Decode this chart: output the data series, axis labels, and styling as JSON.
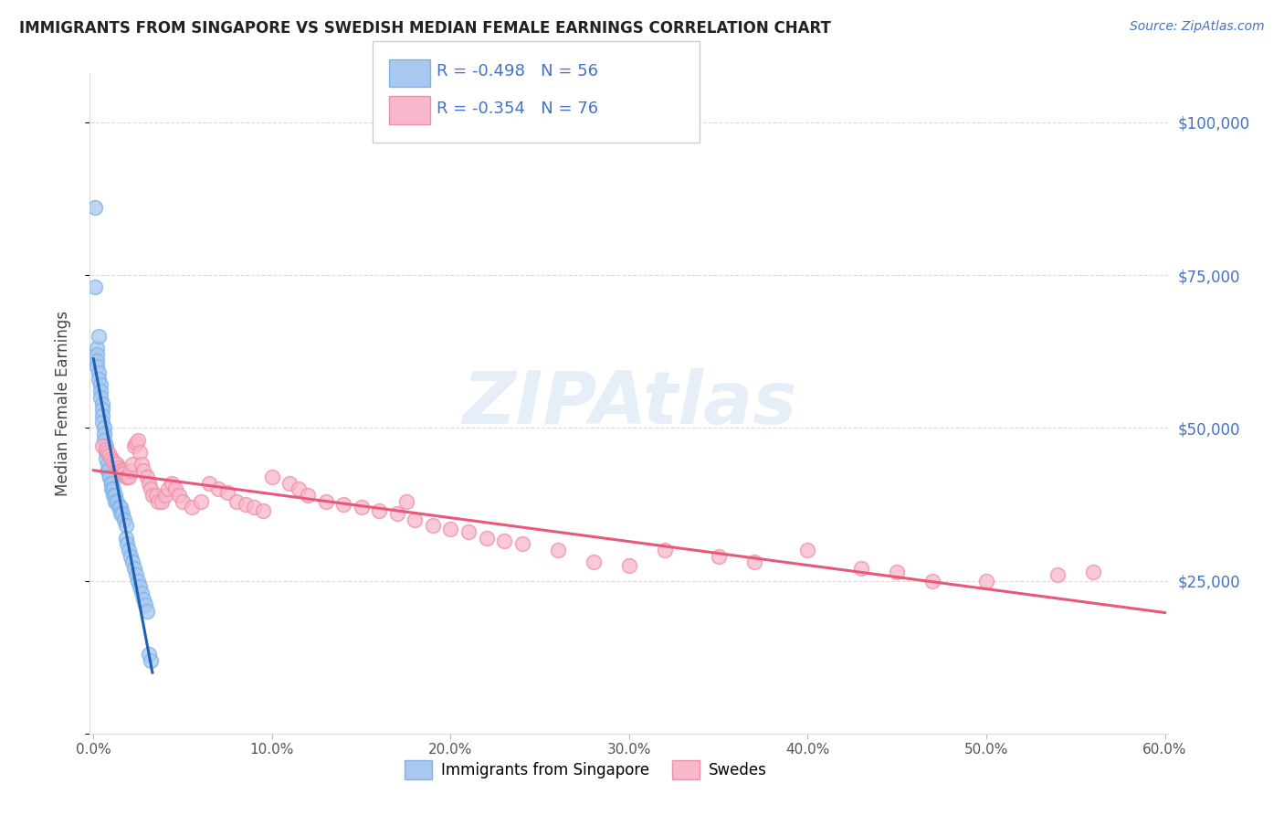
{
  "title": "IMMIGRANTS FROM SINGAPORE VS SWEDISH MEDIAN FEMALE EARNINGS CORRELATION CHART",
  "source": "Source: ZipAtlas.com",
  "ylabel": "Median Female Earnings",
  "xlim": [
    -0.002,
    0.602
  ],
  "ylim": [
    0,
    108000
  ],
  "yticks": [
    0,
    25000,
    50000,
    75000,
    100000
  ],
  "xticks": [
    0.0,
    0.1,
    0.2,
    0.3,
    0.4,
    0.5,
    0.6
  ],
  "xtick_labels": [
    "0.0%",
    "10.0%",
    "20.0%",
    "30.0%",
    "40.0%",
    "50.0%",
    "60.0%"
  ],
  "ytick_labels_right": [
    "$25,000",
    "$50,000",
    "$75,000",
    "$100,000"
  ],
  "background_color": "#ffffff",
  "grid_color": "#cccccc",
  "blue_color": "#A8C8F0",
  "blue_edge_color": "#7EB3E8",
  "blue_line_color": "#2060B0",
  "pink_color": "#F8B8CC",
  "pink_edge_color": "#F090A8",
  "pink_line_color": "#E85878",
  "r_blue": -0.498,
  "n_blue": 56,
  "r_pink": -0.354,
  "n_pink": 76,
  "legend_label_blue": "Immigrants from Singapore",
  "legend_label_pink": "Swedes",
  "blue_points_x": [
    0.001,
    0.001,
    0.002,
    0.002,
    0.002,
    0.002,
    0.003,
    0.003,
    0.003,
    0.004,
    0.004,
    0.004,
    0.005,
    0.005,
    0.005,
    0.005,
    0.006,
    0.006,
    0.006,
    0.007,
    0.007,
    0.007,
    0.008,
    0.008,
    0.008,
    0.009,
    0.009,
    0.01,
    0.01,
    0.01,
    0.011,
    0.011,
    0.012,
    0.012,
    0.013,
    0.014,
    0.015,
    0.015,
    0.016,
    0.017,
    0.018,
    0.018,
    0.019,
    0.02,
    0.021,
    0.022,
    0.023,
    0.024,
    0.025,
    0.026,
    0.027,
    0.028,
    0.029,
    0.03,
    0.031,
    0.032
  ],
  "blue_points_y": [
    86000,
    73000,
    63000,
    62000,
    61000,
    60000,
    59000,
    58000,
    65000,
    57000,
    56000,
    55000,
    54000,
    53000,
    52000,
    51000,
    50000,
    49000,
    48000,
    47000,
    46000,
    45000,
    44000,
    43000,
    43000,
    42000,
    42000,
    41000,
    41000,
    40000,
    40000,
    39000,
    39000,
    38000,
    38000,
    37000,
    37000,
    36000,
    36000,
    35000,
    34000,
    32000,
    31000,
    30000,
    29000,
    28000,
    27000,
    26000,
    25000,
    24000,
    23000,
    22000,
    21000,
    20000,
    13000,
    12000
  ],
  "pink_points_x": [
    0.005,
    0.007,
    0.008,
    0.009,
    0.01,
    0.011,
    0.012,
    0.013,
    0.014,
    0.015,
    0.016,
    0.016,
    0.017,
    0.018,
    0.019,
    0.02,
    0.021,
    0.022,
    0.023,
    0.024,
    0.025,
    0.026,
    0.027,
    0.028,
    0.03,
    0.031,
    0.032,
    0.033,
    0.035,
    0.036,
    0.038,
    0.04,
    0.042,
    0.044,
    0.046,
    0.048,
    0.05,
    0.055,
    0.06,
    0.065,
    0.07,
    0.075,
    0.08,
    0.085,
    0.09,
    0.095,
    0.1,
    0.11,
    0.115,
    0.12,
    0.13,
    0.14,
    0.15,
    0.16,
    0.17,
    0.175,
    0.18,
    0.19,
    0.2,
    0.21,
    0.22,
    0.23,
    0.24,
    0.26,
    0.28,
    0.3,
    0.32,
    0.35,
    0.37,
    0.4,
    0.43,
    0.45,
    0.47,
    0.5,
    0.54,
    0.56
  ],
  "pink_points_y": [
    47000,
    46500,
    46000,
    45500,
    45000,
    44500,
    44000,
    44000,
    43500,
    43000,
    43000,
    42500,
    42500,
    42000,
    42000,
    42000,
    43000,
    44000,
    47000,
    47500,
    48000,
    46000,
    44000,
    43000,
    42000,
    41000,
    40000,
    39000,
    39000,
    38000,
    38000,
    39000,
    40000,
    41000,
    40000,
    39000,
    38000,
    37000,
    38000,
    41000,
    40000,
    39500,
    38000,
    37500,
    37000,
    36500,
    42000,
    41000,
    40000,
    39000,
    38000,
    37500,
    37000,
    36500,
    36000,
    38000,
    35000,
    34000,
    33500,
    33000,
    32000,
    31500,
    31000,
    30000,
    28000,
    27500,
    30000,
    29000,
    28000,
    30000,
    27000,
    26500,
    25000,
    25000,
    26000,
    26500
  ]
}
